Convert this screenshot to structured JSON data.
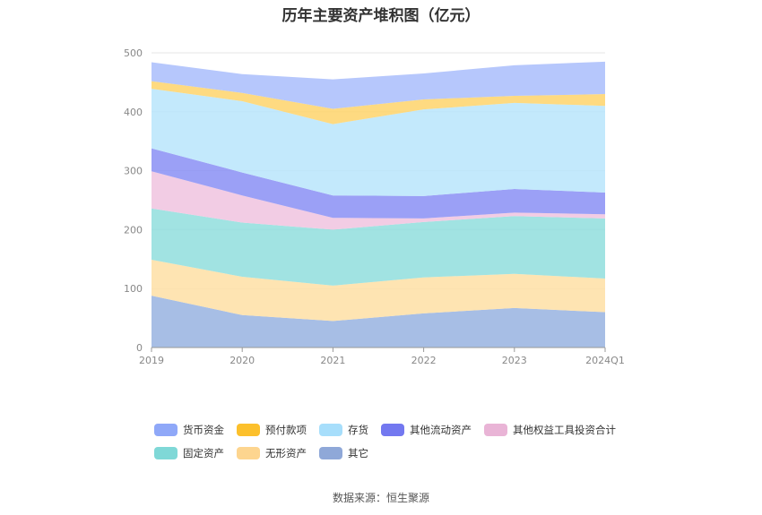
{
  "chart_data": {
    "type": "area",
    "stacked": true,
    "title": "历年主要资产堆积图（亿元）",
    "categories": [
      "2019",
      "2020",
      "2021",
      "2022",
      "2023",
      "2024Q1"
    ],
    "ylim": [
      0,
      500
    ],
    "yticks": [
      0,
      100,
      200,
      300,
      400,
      500
    ],
    "grid": true,
    "legend_position": "bottom",
    "series": [
      {
        "name": "其它",
        "color": "#98b3e0",
        "values": [
          88,
          55,
          45,
          58,
          67,
          60
        ]
      },
      {
        "name": "无形资产",
        "color": "#fedfa5",
        "values": [
          61,
          65,
          60,
          61,
          58,
          57
        ]
      },
      {
        "name": "固定资产",
        "color": "#91dedd",
        "values": [
          87,
          92,
          95,
          94,
          98,
          102
        ]
      },
      {
        "name": "其他权益工具投资合计",
        "color": "#f0c3df",
        "values": [
          63,
          46,
          20,
          6,
          6,
          7
        ]
      },
      {
        "name": "其他流动资产",
        "color": "#8a8ff5",
        "values": [
          39,
          39,
          38,
          38,
          40,
          37
        ]
      },
      {
        "name": "存货",
        "color": "#b9e5fb",
        "values": [
          101,
          121,
          121,
          147,
          146,
          147
        ]
      },
      {
        "name": "预付款项",
        "color": "#fed36b",
        "values": [
          13,
          14,
          26,
          17,
          12,
          20
        ]
      },
      {
        "name": "货币资金",
        "color": "#a9bdfb",
        "values": [
          32,
          32,
          50,
          44,
          52,
          55
        ]
      }
    ]
  },
  "legend": [
    {
      "label": "货币资金",
      "color": "#8fa8f8"
    },
    {
      "label": "预付款项",
      "color": "#fcc02c"
    },
    {
      "label": "存货",
      "color": "#a7defb"
    },
    {
      "label": "其他流动资产",
      "color": "#7378f0"
    },
    {
      "label": "其他权益工具投资合计",
      "color": "#e9b4d6"
    },
    {
      "label": "固定资产",
      "color": "#7fd8d7"
    },
    {
      "label": "无形资产",
      "color": "#fdd58f"
    },
    {
      "label": "其它",
      "color": "#8fa8d8"
    }
  ],
  "source": "数据来源：恒生聚源"
}
